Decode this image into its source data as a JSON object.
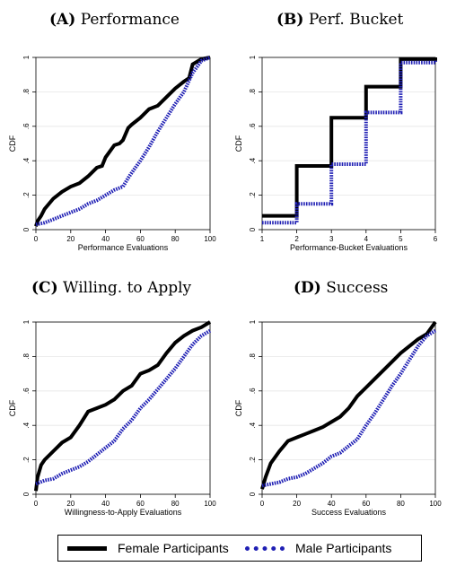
{
  "legend": {
    "female_label": "Female Participants",
    "male_label": "Male Participants"
  },
  "colors": {
    "female": "#000000",
    "male": "#1f1fb4",
    "grid": "#e6e6e6"
  },
  "chart_data": [
    {
      "type": "line",
      "panel_letter": "(A)",
      "title": "Performance",
      "xlabel": "Performance Evaluations",
      "ylabel": "CDF",
      "xlim": [
        0,
        100
      ],
      "ylim": [
        0,
        1
      ],
      "xticks": [
        0,
        20,
        40,
        60,
        80,
        100
      ],
      "xtick_labels": [
        "0",
        "20",
        "40",
        "60",
        "80",
        "100"
      ],
      "yticks": [
        0,
        0.2,
        0.4,
        0.6,
        0.8,
        1
      ],
      "ytick_labels": [
        "0",
        ".2",
        ".4",
        ".6",
        ".8",
        "1"
      ],
      "series": [
        {
          "name": "Female Participants",
          "step": false,
          "x": [
            0,
            1,
            3,
            5,
            10,
            15,
            20,
            25,
            30,
            35,
            38,
            40,
            45,
            48,
            50,
            53,
            55,
            60,
            65,
            70,
            75,
            80,
            85,
            88,
            90,
            95,
            100
          ],
          "y": [
            0.02,
            0.05,
            0.08,
            0.12,
            0.18,
            0.22,
            0.25,
            0.27,
            0.31,
            0.36,
            0.37,
            0.42,
            0.49,
            0.5,
            0.52,
            0.59,
            0.61,
            0.65,
            0.7,
            0.72,
            0.77,
            0.82,
            0.86,
            0.88,
            0.96,
            0.99,
            1.0
          ]
        },
        {
          "name": "Male Participants",
          "step": false,
          "x": [
            0,
            5,
            10,
            15,
            20,
            25,
            30,
            35,
            40,
            45,
            50,
            53,
            55,
            60,
            65,
            70,
            75,
            80,
            85,
            90,
            95,
            100
          ],
          "y": [
            0.03,
            0.04,
            0.06,
            0.08,
            0.1,
            0.12,
            0.15,
            0.17,
            0.2,
            0.23,
            0.25,
            0.3,
            0.33,
            0.4,
            0.48,
            0.57,
            0.65,
            0.73,
            0.8,
            0.91,
            0.98,
            1.0
          ]
        }
      ]
    },
    {
      "type": "line",
      "panel_letter": "(B)",
      "title": "Perf. Bucket",
      "xlabel": "Performance-Bucket Evaluations",
      "ylabel": "CDF",
      "xlim": [
        1,
        6
      ],
      "ylim": [
        0,
        1
      ],
      "xticks": [
        1,
        2,
        3,
        4,
        5,
        6
      ],
      "xtick_labels": [
        "1",
        "2",
        "3",
        "4",
        "5",
        "6"
      ],
      "yticks": [
        0,
        0.2,
        0.4,
        0.6,
        0.8,
        1
      ],
      "ytick_labels": [
        "0",
        ".2",
        ".4",
        ".6",
        ".8",
        "1"
      ],
      "series": [
        {
          "name": "Female Participants",
          "step": true,
          "x": [
            1,
            2,
            3,
            4,
            5,
            6
          ],
          "y": [
            0.08,
            0.37,
            0.65,
            0.83,
            0.99,
            1.0
          ]
        },
        {
          "name": "Male Participants",
          "step": true,
          "x": [
            1,
            2,
            3,
            4,
            5,
            6
          ],
          "y": [
            0.04,
            0.15,
            0.38,
            0.68,
            0.97,
            0.98
          ]
        }
      ]
    },
    {
      "type": "line",
      "panel_letter": "(C)",
      "title": "Willing. to Apply",
      "xlabel": "Willingness-to-Apply Evaluations",
      "ylabel": "CDF",
      "xlim": [
        0,
        100
      ],
      "ylim": [
        0,
        1
      ],
      "xticks": [
        0,
        20,
        40,
        60,
        80,
        100
      ],
      "xtick_labels": [
        "0",
        "20",
        "40",
        "60",
        "80",
        "100"
      ],
      "yticks": [
        0,
        0.2,
        0.4,
        0.6,
        0.8,
        1
      ],
      "ytick_labels": [
        "0",
        ".2",
        ".4",
        ".6",
        ".8",
        "1"
      ],
      "series": [
        {
          "name": "Female Participants",
          "step": false,
          "x": [
            0,
            1,
            3,
            5,
            10,
            15,
            20,
            25,
            30,
            35,
            40,
            45,
            50,
            55,
            60,
            65,
            70,
            75,
            80,
            85,
            90,
            95,
            100
          ],
          "y": [
            0.02,
            0.1,
            0.17,
            0.2,
            0.25,
            0.3,
            0.33,
            0.4,
            0.48,
            0.5,
            0.52,
            0.55,
            0.6,
            0.63,
            0.7,
            0.72,
            0.75,
            0.82,
            0.88,
            0.92,
            0.95,
            0.97,
            1.0
          ]
        },
        {
          "name": "Male Participants",
          "step": false,
          "x": [
            0,
            5,
            10,
            15,
            20,
            25,
            30,
            35,
            40,
            45,
            50,
            55,
            60,
            65,
            70,
            75,
            80,
            85,
            90,
            95,
            100
          ],
          "y": [
            0.06,
            0.08,
            0.09,
            0.12,
            0.14,
            0.16,
            0.19,
            0.23,
            0.27,
            0.31,
            0.38,
            0.43,
            0.5,
            0.55,
            0.61,
            0.67,
            0.73,
            0.8,
            0.87,
            0.92,
            0.95
          ]
        }
      ]
    },
    {
      "type": "line",
      "panel_letter": "(D)",
      "title": "Success",
      "xlabel": "Success Evaluations",
      "ylabel": "CDF",
      "xlim": [
        0,
        100
      ],
      "ylim": [
        0,
        1
      ],
      "xticks": [
        0,
        20,
        40,
        60,
        80,
        100
      ],
      "xtick_labels": [
        "0",
        "20",
        "40",
        "60",
        "80",
        "100"
      ],
      "yticks": [
        0,
        0.2,
        0.4,
        0.6,
        0.8,
        1
      ],
      "ytick_labels": [
        "0",
        ".2",
        ".4",
        ".6",
        ".8",
        "1"
      ],
      "series": [
        {
          "name": "Female Participants",
          "step": false,
          "x": [
            0,
            2,
            5,
            10,
            15,
            20,
            25,
            30,
            35,
            40,
            45,
            50,
            55,
            60,
            65,
            70,
            75,
            80,
            85,
            90,
            95,
            100
          ],
          "y": [
            0.03,
            0.1,
            0.18,
            0.25,
            0.31,
            0.33,
            0.35,
            0.37,
            0.39,
            0.42,
            0.45,
            0.5,
            0.57,
            0.62,
            0.67,
            0.72,
            0.77,
            0.82,
            0.86,
            0.9,
            0.93,
            1.0
          ]
        },
        {
          "name": "Male Participants",
          "step": false,
          "x": [
            0,
            5,
            10,
            15,
            20,
            25,
            30,
            35,
            40,
            45,
            50,
            55,
            60,
            65,
            70,
            75,
            80,
            85,
            90,
            95,
            100
          ],
          "y": [
            0.05,
            0.06,
            0.07,
            0.09,
            0.1,
            0.12,
            0.15,
            0.18,
            0.22,
            0.24,
            0.28,
            0.32,
            0.4,
            0.47,
            0.55,
            0.63,
            0.7,
            0.78,
            0.86,
            0.92,
            0.95
          ]
        }
      ]
    }
  ]
}
